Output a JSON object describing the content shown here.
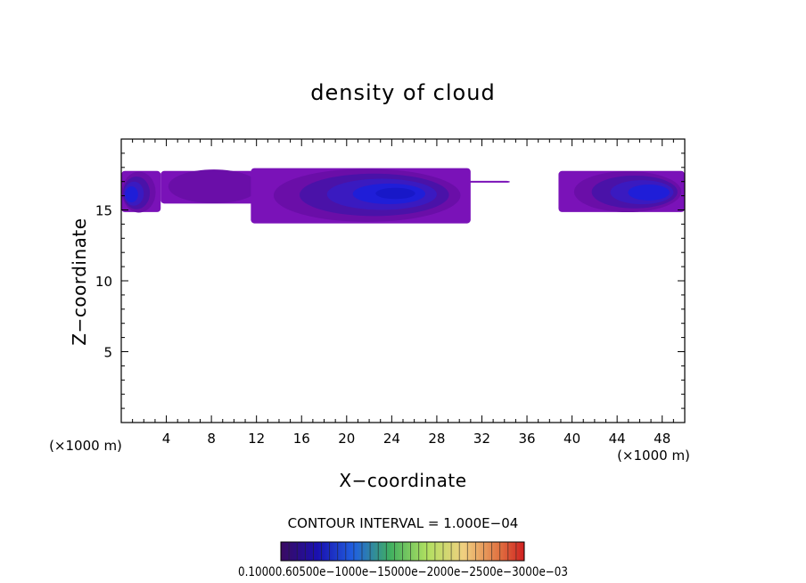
{
  "chart_data": {
    "type": "heatmap",
    "title": "density of cloud",
    "xlabel": "X−coordinate",
    "ylabel": "Z−coordinate",
    "x_unit_left": "(×1000 m)",
    "x_unit_right": "(×1000 m)",
    "xlim": [
      0,
      50
    ],
    "ylim": [
      0,
      20
    ],
    "xticks": [
      4,
      8,
      12,
      16,
      20,
      24,
      28,
      32,
      36,
      40,
      44,
      48
    ],
    "yticks": [
      5,
      10,
      15
    ],
    "contour_interval_text": "CONTOUR INTERVAL = 1.000E−04",
    "colorbar_labels_text": "0.10000.60500e−1000e−15000e−2000e−2500e−3000e−03",
    "colorbar": {
      "min": 0.0001,
      "max": 0.003,
      "levels": 30,
      "colors": [
        "#5a0a78",
        "#3a1aa8",
        "#1010d0",
        "#2050e0",
        "#3aa0e0",
        "#40c060",
        "#a0e060",
        "#f0d070",
        "#e08040",
        "#d02020"
      ]
    },
    "cloud_regions": [
      {
        "x_range": [
          0,
          3.5
        ],
        "z_range": [
          14.6,
          18.0
        ],
        "core_x": 0.5,
        "core_z": 16.0,
        "peak": 0.0006
      },
      {
        "x_range": [
          3.5,
          13
        ],
        "z_range": [
          15.2,
          18.0
        ],
        "core_x": 8,
        "core_z": 17.0,
        "peak": 0.0002
      },
      {
        "x_range": [
          11.5,
          31
        ],
        "z_range": [
          13.8,
          18.2
        ],
        "core_x": 25,
        "core_z": 16.2,
        "peak": 0.0008
      },
      {
        "x_range": [
          29,
          34.5
        ],
        "z_range": [
          16.7,
          17.3
        ],
        "core_x": 31,
        "core_z": 17.0,
        "peak": 0.0001
      },
      {
        "x_range": [
          38.8,
          50
        ],
        "z_range": [
          14.6,
          18.0
        ],
        "core_x": 48,
        "core_z": 16.2,
        "peak": 0.0007
      }
    ]
  }
}
